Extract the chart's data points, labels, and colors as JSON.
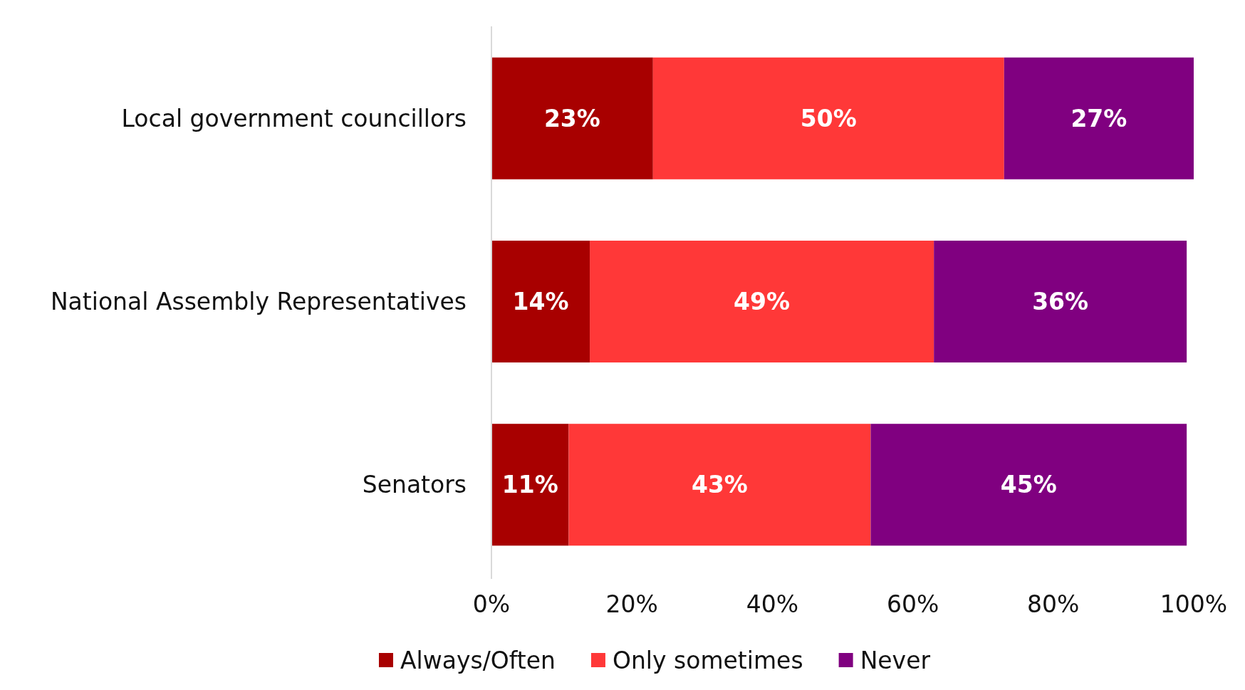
{
  "chart_data": {
    "type": "bar",
    "orientation": "horizontal",
    "stacked": true,
    "categories": [
      "Local government councillors",
      "National Assembly Representatives",
      "Senators"
    ],
    "series": [
      {
        "name": "Always/Often",
        "color": "#a80000",
        "values": [
          23,
          14,
          11
        ],
        "value_labels": [
          "23%",
          "14%",
          "11%"
        ]
      },
      {
        "name": "Only sometimes",
        "color": "#ff3838",
        "values": [
          50,
          49,
          43
        ],
        "value_labels": [
          "50%",
          "49%",
          "43%"
        ]
      },
      {
        "name": "Never",
        "color": "#800080",
        "values": [
          27,
          36,
          45
        ],
        "value_labels": [
          "27%",
          "36%",
          "45%"
        ]
      }
    ],
    "xlim": [
      0,
      100
    ],
    "xticks": [
      {
        "value": 0,
        "label": "0%"
      },
      {
        "value": 20,
        "label": "20%"
      },
      {
        "value": 40,
        "label": "40%"
      },
      {
        "value": 60,
        "label": "60%"
      },
      {
        "value": 80,
        "label": "80%"
      },
      {
        "value": 100,
        "label": "100%"
      }
    ],
    "grid": false,
    "legend": "bottom"
  }
}
